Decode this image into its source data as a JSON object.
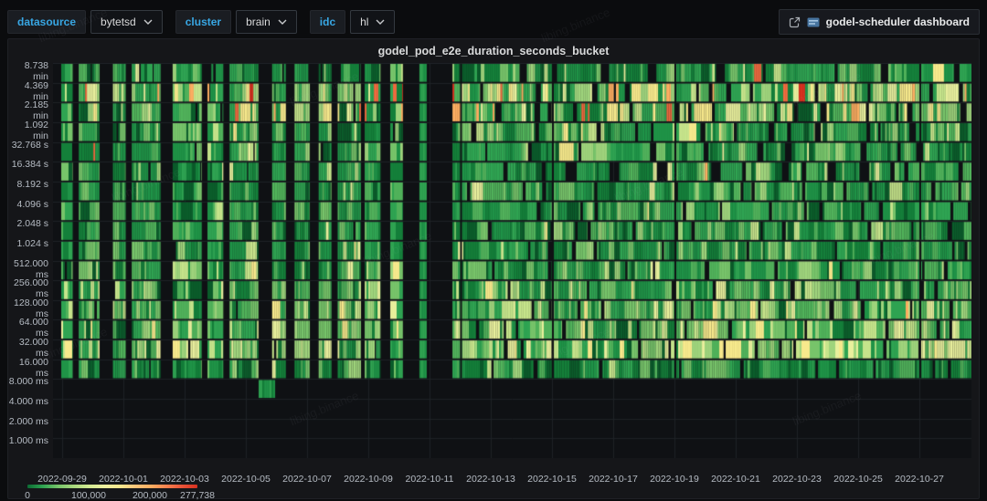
{
  "watermark": {
    "text": "libing.binance"
  },
  "toolbar": {
    "filters": [
      {
        "name": "datasource",
        "label": "datasource",
        "value": "bytetsd"
      },
      {
        "name": "cluster",
        "label": "cluster",
        "value": "brain"
      },
      {
        "name": "idc",
        "label": "idc",
        "value": "hl"
      }
    ],
    "dashboard_link_label": "godel-scheduler dashboard"
  },
  "panel": {
    "title": "godel_pod_e2e_duration_seconds_bucket"
  },
  "chart_data": {
    "type": "heatmap",
    "title": "godel_pod_e2e_duration_seconds_bucket",
    "y_axis": {
      "scale": "log2 duration buckets",
      "bucket_labels_top_to_bottom": [
        "8.738 min",
        "4.369 min",
        "2.185 min",
        "1.092 min",
        "32.768 s",
        "16.384 s",
        "8.192 s",
        "4.096 s",
        "2.048 s",
        "1.024 s",
        "512.000 ms",
        "256.000 ms",
        "128.000 ms",
        "64.000 ms",
        "32.000 ms",
        "16.000 ms",
        "8.000 ms",
        "4.000 ms",
        "2.000 ms",
        "1.000 ms"
      ]
    },
    "x_axis": {
      "tick_labels": [
        "2022-09-29",
        "2022-10-01",
        "2022-10-03",
        "2022-10-05",
        "2022-10-07",
        "2022-10-09",
        "2022-10-11",
        "2022-10-13",
        "2022-10-15",
        "2022-10-17",
        "2022-10-19",
        "2022-10-21",
        "2022-10-23",
        "2022-10-25",
        "2022-10-27"
      ],
      "days_per_tick": 2,
      "range_days": 30
    },
    "legend": {
      "tick_values": [
        0,
        100000,
        200000,
        277738
      ],
      "tick_labels": [
        "0",
        "100,000",
        "200,000",
        "277,738"
      ],
      "max_value": 277738,
      "gradient_stops": [
        "#0c6b33",
        "#2fa352",
        "#77c46a",
        "#a9d87e",
        "#d3ea92",
        "#eef0a0",
        "#f9e88e",
        "#fdc57a",
        "#fdae61",
        "#f7824f",
        "#e85338",
        "#d7301f"
      ]
    },
    "palette": [
      "#0b5d2b",
      "#14803a",
      "#1f9347",
      "#2fa452",
      "#51b35b",
      "#77c46a",
      "#9fd47c",
      "#c6e48b",
      "#e9f09d",
      "#f7e98c",
      "#fdae61",
      "#ef6b3f",
      "#d7301f"
    ],
    "rows": [
      {
        "label": "8.738 min",
        "right_coverage": 0.76,
        "hole_rate": 0.14,
        "weights": [
          2,
          5,
          6,
          5,
          4,
          3,
          2,
          1,
          0.5,
          0.3,
          0.1,
          0.05,
          0.02
        ]
      },
      {
        "label": "4.369 min",
        "right_coverage": 0.9,
        "hole_rate": 0.05,
        "weights": [
          1,
          2,
          3,
          3,
          3,
          3,
          3,
          3,
          2.5,
          2.5,
          1.2,
          0.7,
          0.5
        ]
      },
      {
        "label": "2.185 min",
        "right_coverage": 0.85,
        "hole_rate": 0.06,
        "weights": [
          1,
          2,
          3,
          3,
          3,
          3,
          3,
          2.5,
          2,
          2,
          1,
          0.5,
          0.35
        ]
      },
      {
        "label": "1.092 min",
        "right_coverage": 0.88,
        "hole_rate": 0.06,
        "weights": [
          2,
          4,
          5,
          5,
          4,
          3,
          2.5,
          1.5,
          1,
          0.8,
          0.3,
          0.15,
          0.08
        ]
      },
      {
        "label": "32.768 s",
        "right_coverage": 0.8,
        "hole_rate": 0.08,
        "weights": [
          3,
          5,
          6,
          5,
          4,
          3,
          2,
          1,
          0.6,
          0.4,
          0.15,
          0.05,
          0
        ]
      },
      {
        "label": "16.384 s",
        "right_coverage": 0.62,
        "hole_rate": 0.1,
        "weights": [
          4,
          6,
          6,
          5,
          3,
          2,
          1.5,
          0.8,
          0.4,
          0.2,
          0.05,
          0,
          0
        ]
      },
      {
        "label": "8.192 s",
        "right_coverage": 0.97,
        "hole_rate": 0.02,
        "weights": [
          3,
          5,
          6,
          6,
          5,
          3,
          1.5,
          0.7,
          0.3,
          0.1,
          0,
          0,
          0
        ]
      },
      {
        "label": "4.096 s",
        "right_coverage": 0.97,
        "hole_rate": 0.02,
        "weights": [
          3,
          5,
          6,
          6,
          5,
          3.5,
          2,
          0.8,
          0.3,
          0.1,
          0,
          0,
          0
        ]
      },
      {
        "label": "2.048 s",
        "right_coverage": 0.98,
        "hole_rate": 0.015,
        "weights": [
          3,
          5,
          6,
          6,
          5,
          3.5,
          2,
          1,
          0.4,
          0.1,
          0,
          0,
          0
        ]
      },
      {
        "label": "1.024 s",
        "right_coverage": 0.98,
        "hole_rate": 0.015,
        "weights": [
          3,
          5,
          6,
          6,
          5,
          4,
          2.5,
          1.2,
          0.5,
          0.15,
          0,
          0,
          0
        ]
      },
      {
        "label": "512.000 ms",
        "right_coverage": 0.98,
        "hole_rate": 0.015,
        "weights": [
          2,
          4,
          6,
          6,
          5,
          4,
          3,
          1.5,
          0.6,
          0.2,
          0,
          0,
          0
        ]
      },
      {
        "label": "256.000 ms",
        "right_coverage": 0.98,
        "hole_rate": 0.015,
        "weights": [
          2,
          3,
          5,
          6,
          5,
          4.5,
          3.5,
          2.5,
          1.2,
          0.4,
          0,
          0,
          0
        ]
      },
      {
        "label": "128.000 ms",
        "right_coverage": 0.98,
        "hole_rate": 0.015,
        "weights": [
          1.5,
          3,
          4,
          5,
          5,
          4.5,
          4,
          3,
          2,
          0.8,
          0.05,
          0,
          0
        ]
      },
      {
        "label": "64.000 ms",
        "right_coverage": 0.98,
        "hole_rate": 0.015,
        "weights": [
          1,
          2,
          3,
          4,
          4.5,
          4.5,
          4.5,
          4,
          3,
          1.5,
          0.1,
          0,
          0
        ]
      },
      {
        "label": "32.000 ms",
        "right_coverage": 0.98,
        "hole_rate": 0.015,
        "weights": [
          0.8,
          1.5,
          2.5,
          3,
          4,
          4.5,
          5,
          5,
          4.5,
          2.5,
          0.2,
          0,
          0
        ]
      },
      {
        "label": "16.000 ms",
        "right_coverage": 0.99,
        "hole_rate": 0.01,
        "weights": [
          5,
          6,
          6,
          4,
          2.5,
          1.5,
          0.8,
          0.4,
          0.15,
          0.05,
          0,
          0,
          0
        ]
      },
      {
        "label": "8.000 ms",
        "right_coverage": 0,
        "hole_rate": 0,
        "weights": [
          2,
          4,
          6,
          4,
          2,
          1,
          0,
          0,
          0,
          0,
          0,
          0,
          0
        ]
      },
      {
        "label": "4.000 ms",
        "right_coverage": 0,
        "hole_rate": 0,
        "weights": [
          0,
          0,
          0,
          0,
          0,
          0,
          0,
          0,
          0,
          0,
          0,
          0,
          0
        ]
      },
      {
        "label": "2.000 ms",
        "right_coverage": 0,
        "hole_rate": 0,
        "weights": [
          0,
          0,
          0,
          0,
          0,
          0,
          0,
          0,
          0,
          0,
          0,
          0,
          0
        ]
      },
      {
        "label": "1.000 ms",
        "right_coverage": 0,
        "hole_rate": 0,
        "weights": [
          0,
          0,
          0,
          0,
          0,
          0,
          0,
          0,
          0,
          0,
          0,
          0,
          0
        ]
      }
    ],
    "features": {
      "left_era_end_day": 11.13,
      "data_gap_days": [
        11.13,
        12.72
      ],
      "gap_partial_strip_day": [
        11.67,
        11.85
      ],
      "bright_column_days": [
        6.42,
        6.9
      ],
      "bright_column_rows": [
        12,
        13,
        14,
        15
      ],
      "isolated_cell": {
        "row_label": "8.000 ms",
        "row_index": 16,
        "days": [
          6.42,
          6.9
        ]
      }
    },
    "seed": 1337
  }
}
